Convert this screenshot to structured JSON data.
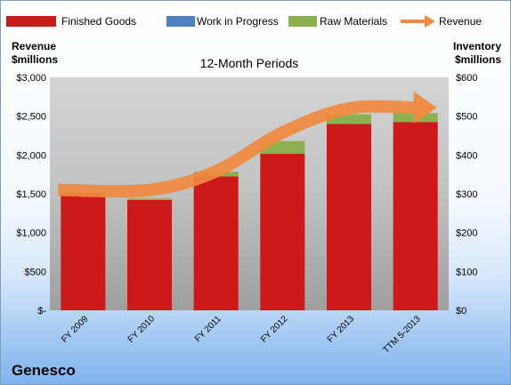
{
  "company": "Genesco",
  "chart_data": {
    "type": "bar",
    "title": "12-Month Periods",
    "categories": [
      "FY 2009",
      "FY 2010",
      "FY 2011",
      "FY 2012",
      "FY 2013",
      "TTM 5-2013"
    ],
    "left_axis": {
      "label_line1": "Revenue",
      "label_line2": "$millions",
      "ylim": [
        0,
        3000
      ],
      "ticks": [
        "$-",
        "$500",
        "$1,000",
        "$1,500",
        "$2,000",
        "$2,500",
        "$3,000"
      ]
    },
    "right_axis": {
      "label_line1": "Inventory",
      "label_line2": "$millions",
      "ylim": [
        0,
        600
      ],
      "ticks": [
        "$0",
        "$100",
        "$200",
        "$300",
        "$400",
        "$500",
        "$600"
      ]
    },
    "stacking": "stacked",
    "legend_position": "top",
    "grid": false,
    "series": [
      {
        "name": "Finished Goods",
        "axis": "right",
        "color": "#cc1a1a",
        "values": [
          302,
          284,
          345,
          403,
          480,
          485
        ]
      },
      {
        "name": "Work in Progress",
        "axis": "right",
        "color": "#4e7fbf",
        "values": [
          0,
          0,
          0,
          0,
          0,
          0
        ]
      },
      {
        "name": "Raw Materials",
        "axis": "right",
        "color": "#8cb04f",
        "values": [
          3,
          4,
          12,
          33,
          25,
          23
        ]
      },
      {
        "name": "Revenue",
        "axis": "left",
        "type": "line",
        "color": "#f0893f",
        "values": [
          1550,
          1550,
          1790,
          2290,
          2600,
          2610
        ]
      }
    ]
  }
}
